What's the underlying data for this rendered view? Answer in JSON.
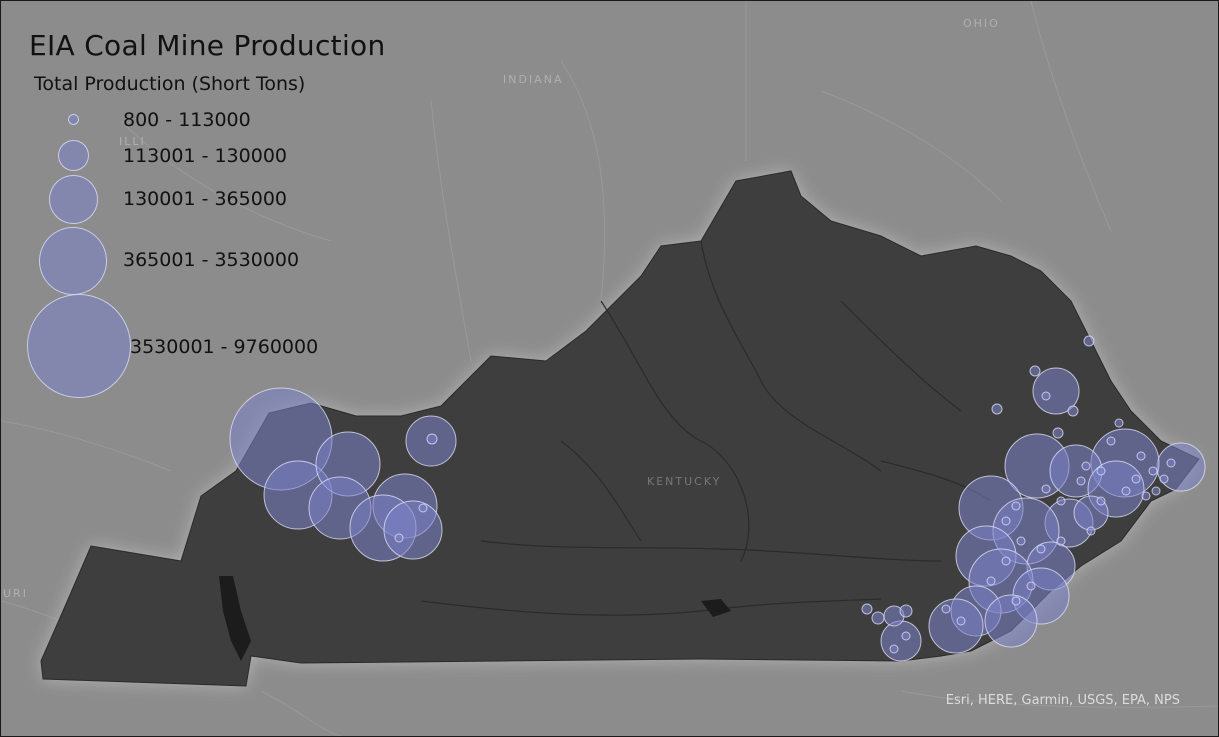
{
  "map": {
    "title": "EIA Coal Mine Production",
    "region_labels": {
      "ohio": "OHIO",
      "indiana": "INDIANA",
      "illinois": "ILLI",
      "kentucky": "KENTUCKY",
      "missouri": "URI"
    },
    "attribution": "Esri, HERE, Garmin, USGS, EPA, NPS",
    "colors": {
      "basemap": "#8c8c8c",
      "state_fill": "#3e3e3e",
      "symbol_fill": "#7c82c8",
      "symbol_stroke": "#dcdef5"
    }
  },
  "legend": {
    "subtitle": "Total Production (Short Tons)",
    "classes": [
      {
        "label": "800 - 113000"
      },
      {
        "label": "113001 - 130000"
      },
      {
        "label": "130001 - 365000"
      },
      {
        "label": "365001 - 3530000"
      },
      {
        "label": "3530001 - 9760000"
      }
    ]
  }
}
